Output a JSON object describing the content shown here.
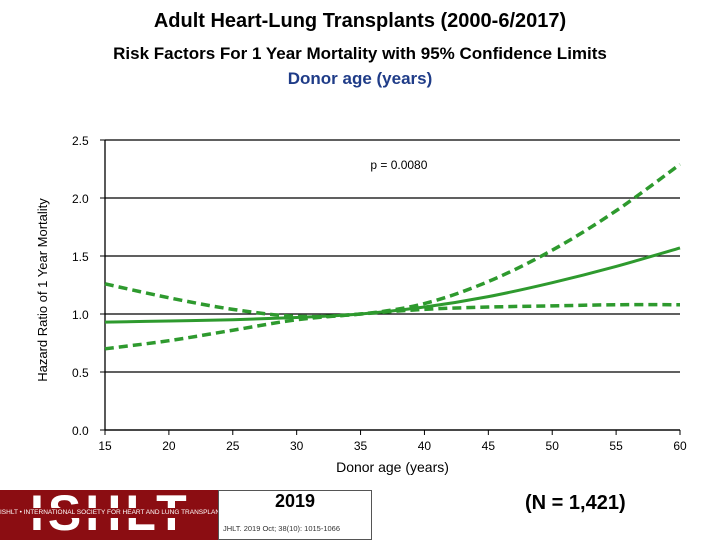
{
  "header": {
    "title": "Adult Heart-Lung Transplants (2000-6/2017)",
    "subtitle": "Risk Factors For 1 Year Mortality with 95% Confidence Limits",
    "subtitle2": "Donor age (years)"
  },
  "chart_data": {
    "type": "line",
    "xlabel": "Donor age (years)",
    "ylabel": "Hazard Ratio of 1 Year Mortality",
    "xlim": [
      15,
      60
    ],
    "ylim": [
      0.0,
      2.5
    ],
    "xticks": [
      "15",
      "20",
      "25",
      "30",
      "35",
      "40",
      "45",
      "50",
      "55",
      "60"
    ],
    "yticks": [
      "0.0",
      "0.5",
      "1.0",
      "1.5",
      "2.0",
      "2.5"
    ],
    "grid": "horizontal",
    "annotation": "p = 0.0080",
    "colors": {
      "line": "#2e9a2e"
    },
    "series": [
      {
        "style": "solid",
        "x": [
          15,
          20,
          25,
          30,
          35,
          40,
          45,
          50,
          55,
          60
        ],
        "y": [
          0.93,
          0.94,
          0.95,
          0.97,
          1.0,
          1.06,
          1.15,
          1.27,
          1.41,
          1.57
        ]
      },
      {
        "style": "dashed",
        "x": [
          15,
          20,
          25,
          30,
          35,
          40,
          45,
          50,
          55,
          60
        ],
        "y": [
          1.26,
          1.14,
          1.04,
          0.98,
          1.0,
          1.09,
          1.28,
          1.55,
          1.89,
          2.29
        ]
      },
      {
        "style": "dashed",
        "x": [
          15,
          20,
          25,
          30,
          35,
          40,
          45,
          50,
          55,
          60
        ],
        "y": [
          0.7,
          0.77,
          0.86,
          0.95,
          1.0,
          1.04,
          1.06,
          1.07,
          1.08,
          1.08
        ]
      }
    ]
  },
  "footer": {
    "logo_text": "ISHLT",
    "logo_subtext": "ISHLT • INTERNATIONAL SOCIETY FOR HEART AND LUNG TRANSPLANTATION",
    "year": "2019",
    "citation": "JHLT. 2019 Oct; 38(10): 1015-1066",
    "n_label": "(N = 1,421)"
  }
}
